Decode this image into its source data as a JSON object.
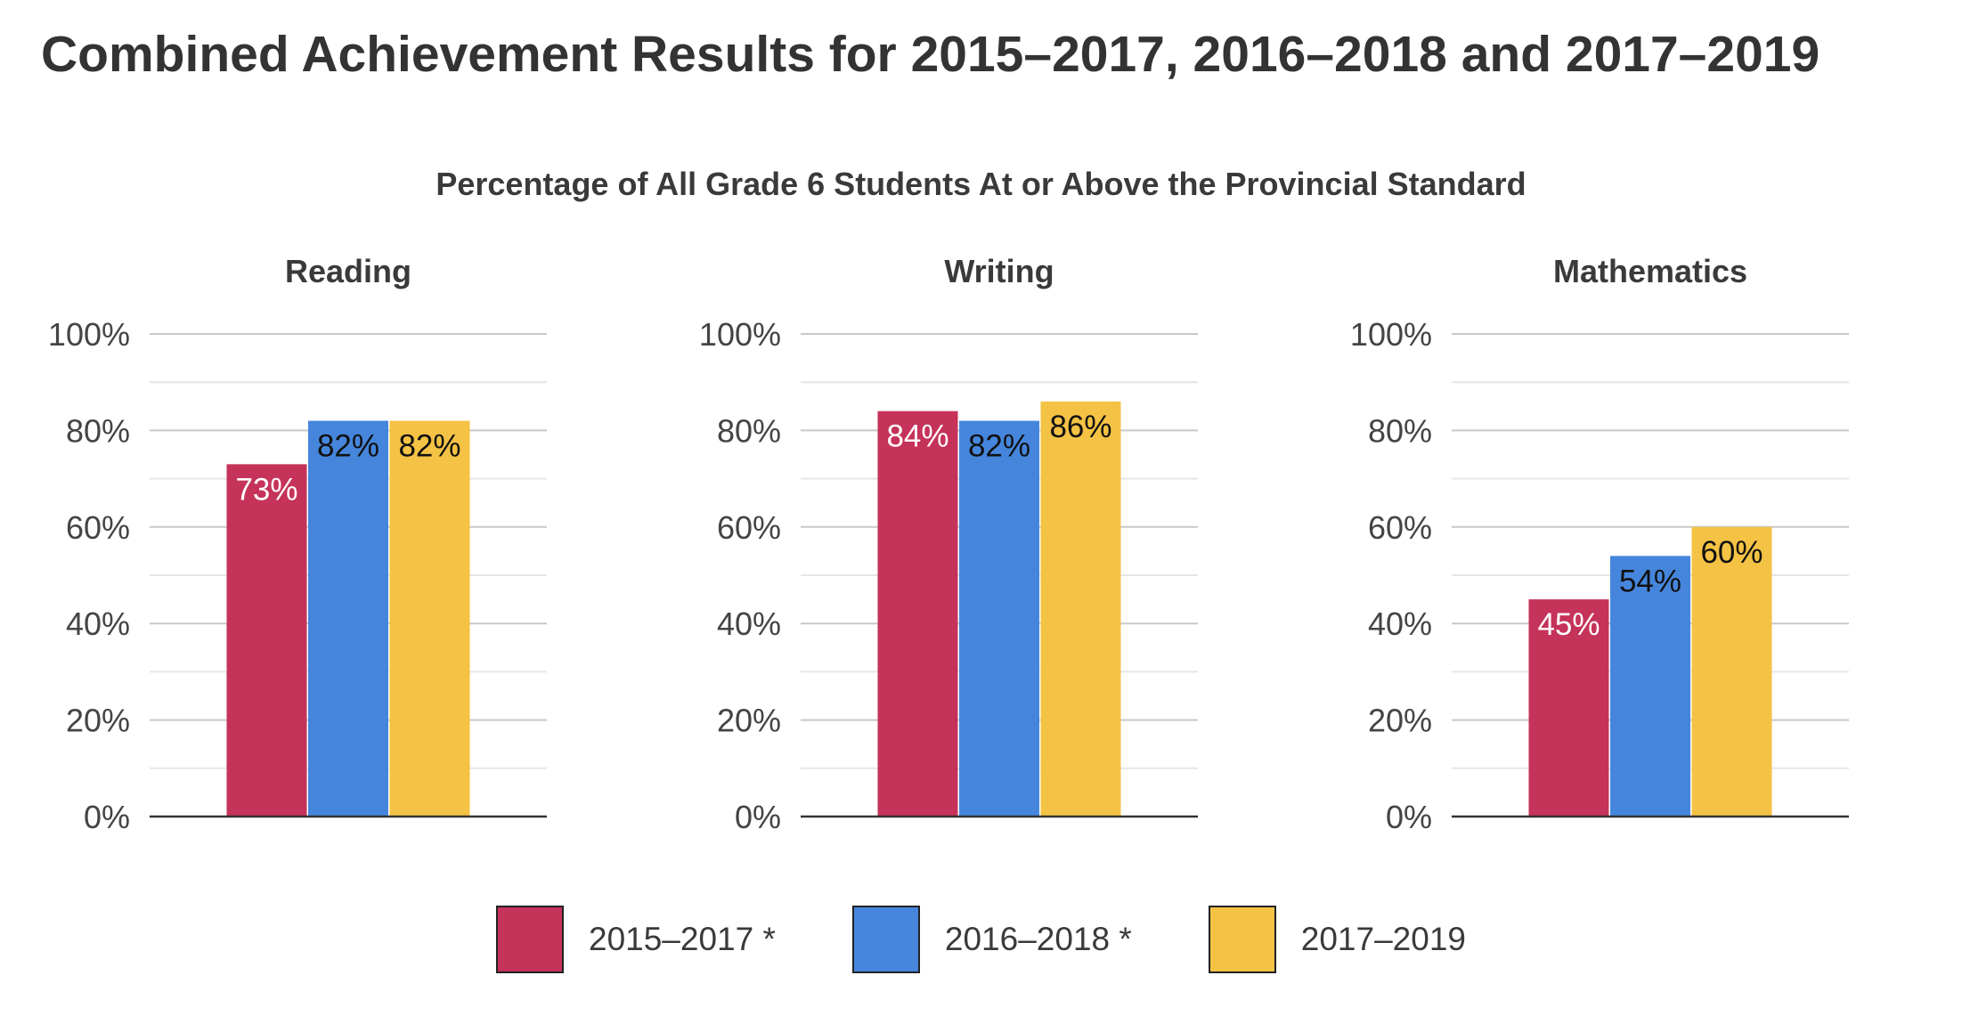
{
  "title": "Combined Achievement Results for 2015–2017, 2016–2018 and 2017–2019",
  "subtitle": "Percentage of All Grade 6 Students At or Above the Provincial Standard",
  "colors": {
    "series_1": "#c5325a",
    "series_2": "#4586dc",
    "series_3": "#f4c244",
    "grid_major": "#c8c8c8",
    "grid_minor": "#e6e6e6",
    "axis": "#333333"
  },
  "legend": [
    {
      "label": "2015–2017 *",
      "color": "#c5325a"
    },
    {
      "label": "2016–2018 *",
      "color": "#4586dc"
    },
    {
      "label": "2017–2019",
      "color": "#f4c244"
    }
  ],
  "chart_data": [
    {
      "type": "bar",
      "title": "Reading",
      "categories": [
        ""
      ],
      "ylim": [
        0,
        100
      ],
      "yticks": [
        "0%",
        "20%",
        "40%",
        "60%",
        "80%",
        "100%"
      ],
      "grid": true,
      "legend_position": "bottom",
      "series": [
        {
          "name": "2015–2017 *",
          "values": [
            73
          ],
          "labels": [
            "73%"
          ],
          "color": "#c5325a",
          "label_color": "#ffffff"
        },
        {
          "name": "2016–2018 *",
          "values": [
            82
          ],
          "labels": [
            "82%"
          ],
          "color": "#4586dc",
          "label_color": "#111111"
        },
        {
          "name": "2017–2019",
          "values": [
            82
          ],
          "labels": [
            "82%"
          ],
          "color": "#f4c244",
          "label_color": "#111111"
        }
      ]
    },
    {
      "type": "bar",
      "title": "Writing",
      "categories": [
        ""
      ],
      "ylim": [
        0,
        100
      ],
      "yticks": [
        "0%",
        "20%",
        "40%",
        "60%",
        "80%",
        "100%"
      ],
      "grid": true,
      "legend_position": "bottom",
      "series": [
        {
          "name": "2015–2017 *",
          "values": [
            84
          ],
          "labels": [
            "84%"
          ],
          "color": "#c5325a",
          "label_color": "#ffffff"
        },
        {
          "name": "2016–2018 *",
          "values": [
            82
          ],
          "labels": [
            "82%"
          ],
          "color": "#4586dc",
          "label_color": "#111111"
        },
        {
          "name": "2017–2019",
          "values": [
            86
          ],
          "labels": [
            "86%"
          ],
          "color": "#f4c244",
          "label_color": "#111111"
        }
      ]
    },
    {
      "type": "bar",
      "title": "Mathematics",
      "categories": [
        ""
      ],
      "ylim": [
        0,
        100
      ],
      "yticks": [
        "0%",
        "20%",
        "40%",
        "60%",
        "80%",
        "100%"
      ],
      "grid": true,
      "legend_position": "bottom",
      "series": [
        {
          "name": "2015–2017 *",
          "values": [
            45
          ],
          "labels": [
            "45%"
          ],
          "color": "#c5325a",
          "label_color": "#ffffff"
        },
        {
          "name": "2016–2018 *",
          "values": [
            54
          ],
          "labels": [
            "54%"
          ],
          "color": "#4586dc",
          "label_color": "#111111"
        },
        {
          "name": "2017–2019",
          "values": [
            60
          ],
          "labels": [
            "60%"
          ],
          "color": "#f4c244",
          "label_color": "#111111"
        }
      ]
    }
  ]
}
